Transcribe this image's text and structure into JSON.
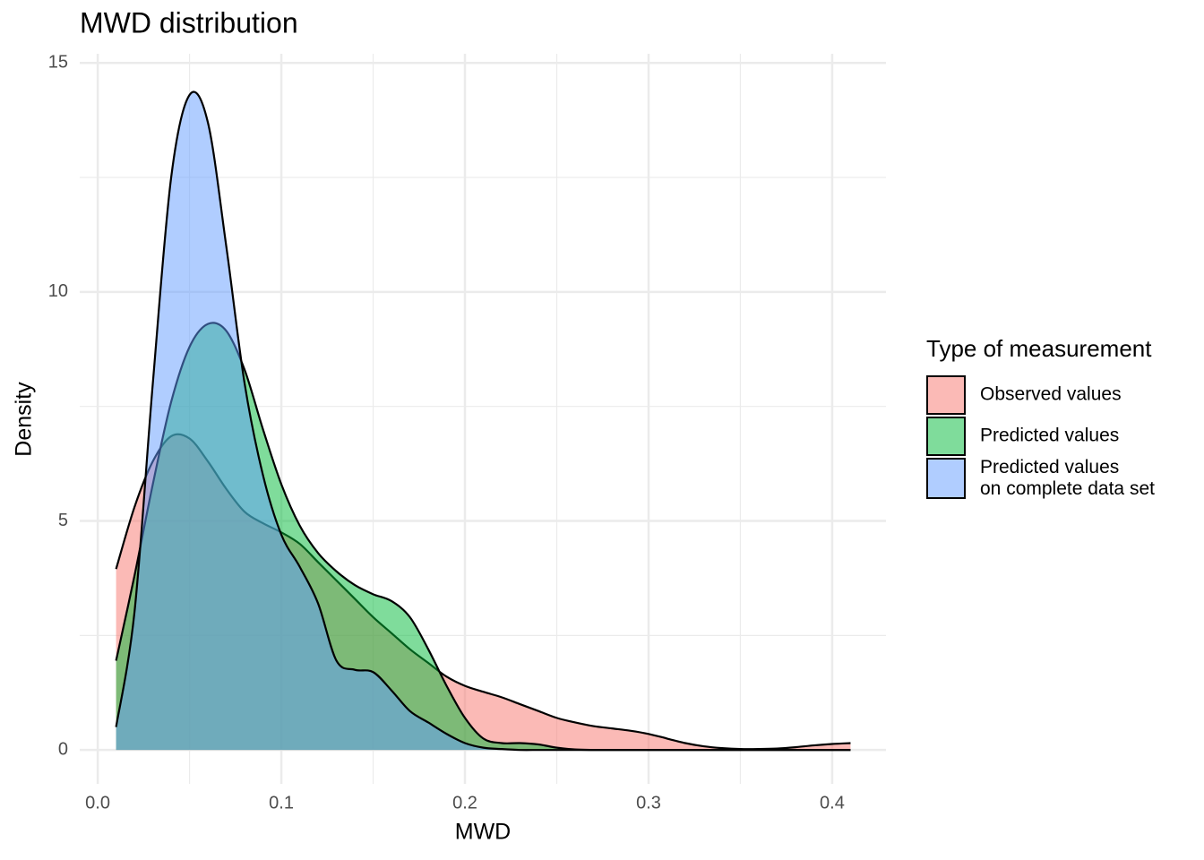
{
  "chart_data": {
    "type": "density",
    "title": "MWD distribution",
    "x_label": "MWD",
    "y_label": "Density",
    "legend_title": "Type of measurement",
    "legend_position": "right",
    "grid": true,
    "fill_opacity": 0.5,
    "xlim": [
      -0.0098,
      0.4293
    ],
    "ylim": [
      -0.74,
      15.2
    ],
    "xticks": [
      {
        "value": 0,
        "label": "0.0"
      },
      0.1,
      0.2,
      0.3,
      0.4
    ],
    "yticks": [
      0,
      5,
      10,
      15
    ],
    "x_minor_gridlines": [
      0.05,
      0.15,
      0.25,
      0.35
    ],
    "y_minor_gridlines": [
      2.5,
      7.5,
      12.5
    ],
    "x": [
      0.01,
      0.02,
      0.03,
      0.04,
      0.05,
      0.06,
      0.07,
      0.08,
      0.09,
      0.1,
      0.11,
      0.12,
      0.13,
      0.14,
      0.15,
      0.16,
      0.17,
      0.18,
      0.19,
      0.2,
      0.21,
      0.22,
      0.23,
      0.24,
      0.25,
      0.26,
      0.27,
      0.28,
      0.29,
      0.3,
      0.31,
      0.32,
      0.33,
      0.34,
      0.35,
      0.36,
      0.37,
      0.38,
      0.39,
      0.4,
      0.41
    ],
    "series": [
      {
        "name": "Observed values",
        "color": "#F8766D",
        "values": [
          3.95,
          5.3,
          6.3,
          6.85,
          6.8,
          6.3,
          5.7,
          5.2,
          4.95,
          4.75,
          4.5,
          4.1,
          3.7,
          3.3,
          2.9,
          2.55,
          2.2,
          1.9,
          1.6,
          1.4,
          1.27,
          1.15,
          1.0,
          0.85,
          0.7,
          0.6,
          0.52,
          0.47,
          0.42,
          0.35,
          0.25,
          0.15,
          0.08,
          0.04,
          0.02,
          0.02,
          0.03,
          0.06,
          0.1,
          0.13,
          0.15
        ]
      },
      {
        "name": "Predicted values",
        "color": "#00BA38",
        "values": [
          1.95,
          3.8,
          5.8,
          7.6,
          8.8,
          9.3,
          9.15,
          8.3,
          7.0,
          5.8,
          4.9,
          4.3,
          3.9,
          3.6,
          3.4,
          3.25,
          2.9,
          2.2,
          1.4,
          0.7,
          0.25,
          0.15,
          0.15,
          0.12,
          0.05,
          0.01,
          0,
          0,
          0,
          0,
          0,
          0,
          0,
          0,
          0,
          0,
          0,
          0,
          0,
          0,
          0
        ]
      },
      {
        "name": "Predicted values\non complete data set",
        "color": "#619CFF",
        "values": [
          0.5,
          3.0,
          8.0,
          12.5,
          14.3,
          13.7,
          11.0,
          8.0,
          6.0,
          4.7,
          4.0,
          3.2,
          1.95,
          1.75,
          1.7,
          1.3,
          0.85,
          0.6,
          0.35,
          0.15,
          0.05,
          0.02,
          0,
          0,
          0,
          0,
          0,
          0,
          0,
          0,
          0,
          0,
          0,
          0,
          0,
          0,
          0,
          0,
          0,
          0,
          0
        ]
      }
    ]
  }
}
